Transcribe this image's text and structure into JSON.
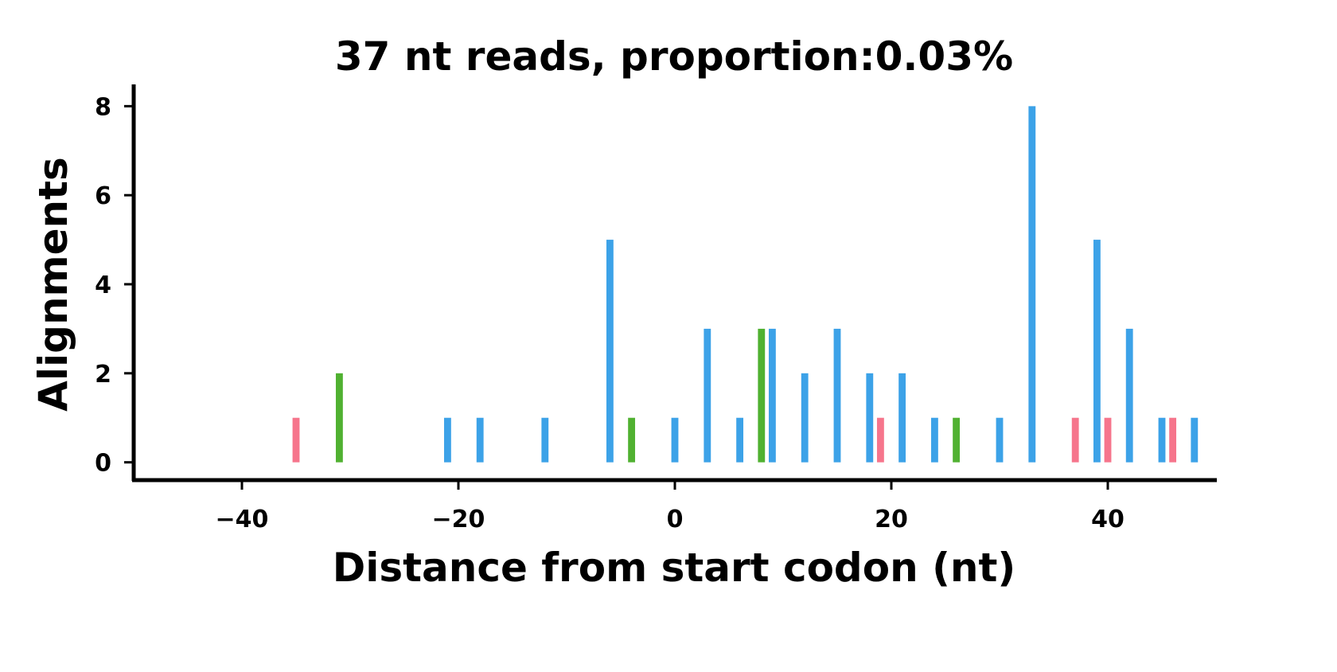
{
  "chart_data": {
    "type": "bar",
    "title": "37 nt reads, proportion:0.03%",
    "xlabel": "Distance from start codon (nt)",
    "ylabel": "Alignments",
    "xlim": [
      -50,
      50
    ],
    "ylim": [
      -0.4,
      8.4
    ],
    "xticks": [
      -40,
      -20,
      0,
      20,
      40
    ],
    "xtick_labels": [
      "−40",
      "−20",
      "0",
      "20",
      "40"
    ],
    "yticks": [
      0,
      2,
      4,
      6,
      8
    ],
    "ytick_labels": [
      "0",
      "2",
      "4",
      "6",
      "8"
    ],
    "grid": false,
    "colors": {
      "frame0": "#3ca2e8",
      "frame1": "#f6758c",
      "frame2": "#50b131"
    },
    "bars": [
      {
        "x": -35,
        "y": 1,
        "frame": "frame1"
      },
      {
        "x": -31,
        "y": 2,
        "frame": "frame2"
      },
      {
        "x": -21,
        "y": 1,
        "frame": "frame0"
      },
      {
        "x": -18,
        "y": 1,
        "frame": "frame0"
      },
      {
        "x": -12,
        "y": 1,
        "frame": "frame0"
      },
      {
        "x": -6,
        "y": 5,
        "frame": "frame0"
      },
      {
        "x": -4,
        "y": 1,
        "frame": "frame2"
      },
      {
        "x": 0,
        "y": 1,
        "frame": "frame0"
      },
      {
        "x": 3,
        "y": 3,
        "frame": "frame0"
      },
      {
        "x": 6,
        "y": 1,
        "frame": "frame0"
      },
      {
        "x": 8,
        "y": 3,
        "frame": "frame2"
      },
      {
        "x": 9,
        "y": 3,
        "frame": "frame0"
      },
      {
        "x": 12,
        "y": 2,
        "frame": "frame0"
      },
      {
        "x": 15,
        "y": 3,
        "frame": "frame0"
      },
      {
        "x": 18,
        "y": 2,
        "frame": "frame0"
      },
      {
        "x": 19,
        "y": 1,
        "frame": "frame1"
      },
      {
        "x": 21,
        "y": 2,
        "frame": "frame0"
      },
      {
        "x": 24,
        "y": 1,
        "frame": "frame0"
      },
      {
        "x": 26,
        "y": 1,
        "frame": "frame2"
      },
      {
        "x": 30,
        "y": 1,
        "frame": "frame0"
      },
      {
        "x": 33,
        "y": 8,
        "frame": "frame0"
      },
      {
        "x": 37,
        "y": 1,
        "frame": "frame1"
      },
      {
        "x": 39,
        "y": 5,
        "frame": "frame0"
      },
      {
        "x": 40,
        "y": 1,
        "frame": "frame1"
      },
      {
        "x": 42,
        "y": 3,
        "frame": "frame0"
      },
      {
        "x": 45,
        "y": 1,
        "frame": "frame0"
      },
      {
        "x": 46,
        "y": 1,
        "frame": "frame1"
      },
      {
        "x": 48,
        "y": 1,
        "frame": "frame0"
      }
    ]
  }
}
